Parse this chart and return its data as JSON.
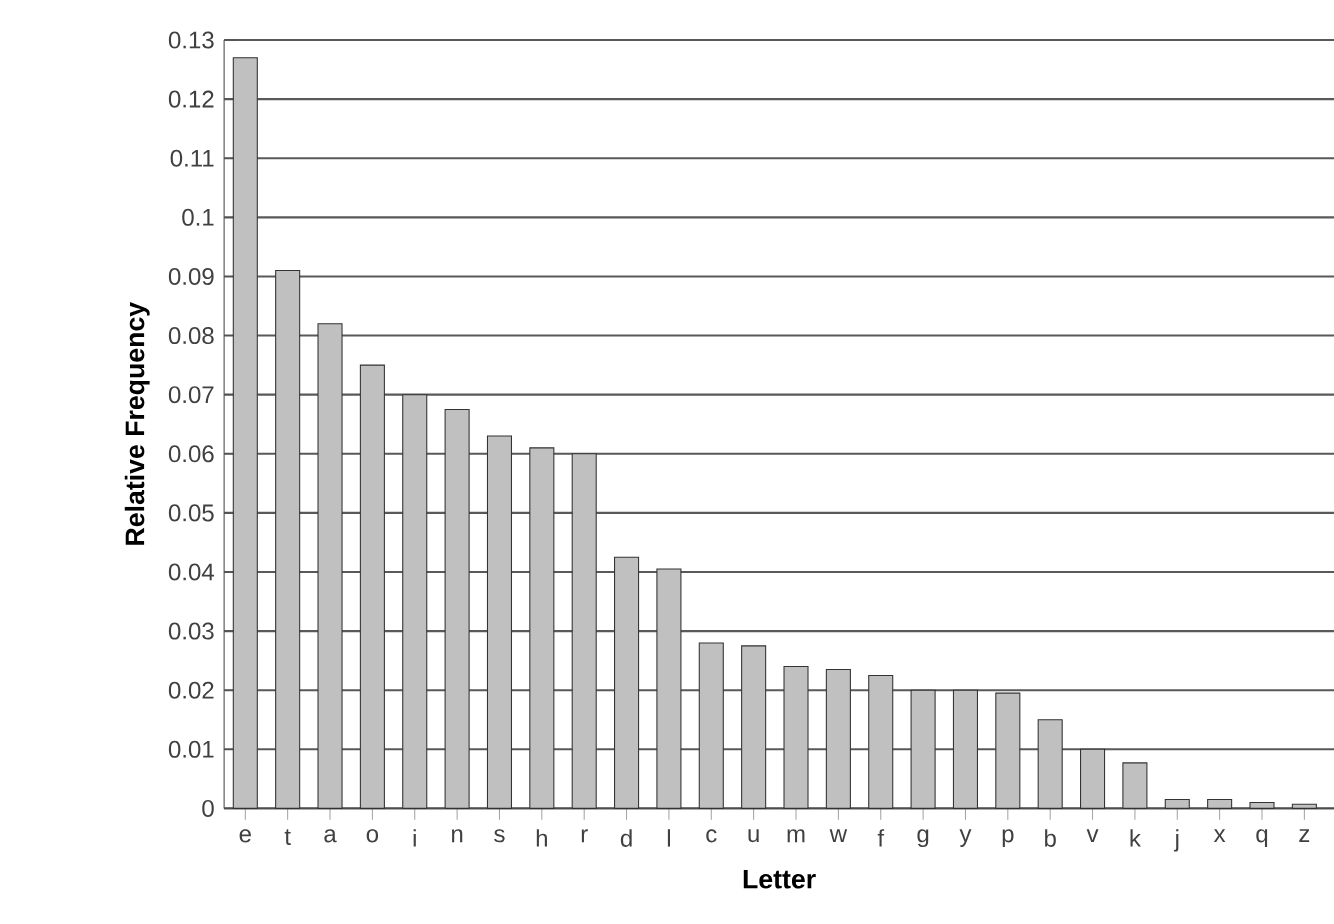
{
  "chart_data": {
    "type": "bar",
    "xlabel": "Letter",
    "ylabel": "Relative Frequency",
    "categories": [
      "e",
      "t",
      "a",
      "o",
      "i",
      "n",
      "s",
      "h",
      "r",
      "d",
      "l",
      "c",
      "u",
      "m",
      "w",
      "f",
      "g",
      "y",
      "p",
      "b",
      "v",
      "k",
      "j",
      "x",
      "q",
      "z"
    ],
    "values": [
      0.127,
      0.091,
      0.082,
      0.075,
      0.07,
      0.0675,
      0.063,
      0.061,
      0.06,
      0.0425,
      0.0405,
      0.028,
      0.0275,
      0.024,
      0.0235,
      0.0225,
      0.02,
      0.02,
      0.0195,
      0.015,
      0.01,
      0.0077,
      0.0015,
      0.0015,
      0.001,
      0.0007
    ],
    "color": "#c0c0c0",
    "ylim": [
      0,
      0.13
    ],
    "yticks": [
      0,
      0.01,
      0.02,
      0.03,
      0.04,
      0.05,
      0.06,
      0.07,
      0.08,
      0.09,
      0.1,
      0.11,
      0.12,
      0.13
    ],
    "grid": "y"
  }
}
